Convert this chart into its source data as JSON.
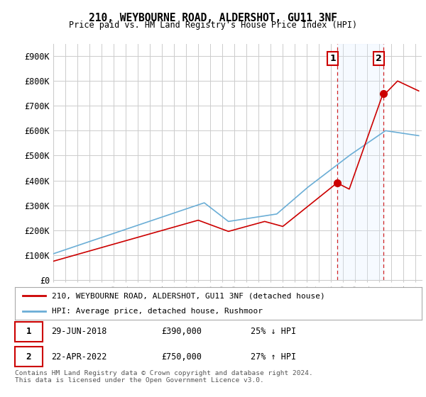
{
  "title": "210, WEYBOURNE ROAD, ALDERSHOT, GU11 3NF",
  "subtitle": "Price paid vs. HM Land Registry's House Price Index (HPI)",
  "ylabel_ticks": [
    "£0",
    "£100K",
    "£200K",
    "£300K",
    "£400K",
    "£500K",
    "£600K",
    "£700K",
    "£800K",
    "£900K"
  ],
  "ytick_values": [
    0,
    100000,
    200000,
    300000,
    400000,
    500000,
    600000,
    700000,
    800000,
    900000
  ],
  "ylim": [
    0,
    950000
  ],
  "xlim_start": 1995.0,
  "xlim_end": 2025.5,
  "hpi_color": "#6baed6",
  "price_color": "#cc0000",
  "dashed_line_color": "#cc0000",
  "shade_color": "#ddeeff",
  "marker1_x": 2018.49,
  "marker1_y": 390000,
  "marker2_x": 2022.3,
  "marker2_y": 750000,
  "legend_label1": "210, WEYBOURNE ROAD, ALDERSHOT, GU11 3NF (detached house)",
  "legend_label2": "HPI: Average price, detached house, Rushmoor",
  "annotation1_num": "1",
  "annotation2_num": "2",
  "table_row1": [
    "1",
    "29-JUN-2018",
    "£390,000",
    "25% ↓ HPI"
  ],
  "table_row2": [
    "2",
    "22-APR-2022",
    "£750,000",
    "27% ↑ HPI"
  ],
  "footer": "Contains HM Land Registry data © Crown copyright and database right 2024.\nThis data is licensed under the Open Government Licence v3.0.",
  "background_color": "#ffffff",
  "grid_color": "#cccccc"
}
